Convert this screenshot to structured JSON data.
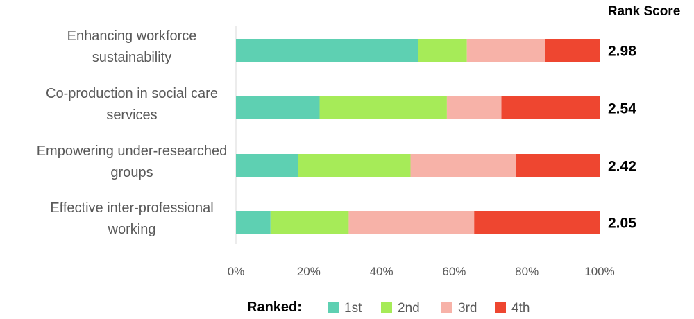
{
  "chart_data": {
    "type": "bar",
    "orientation": "horizontal",
    "stacked": true,
    "categories": [
      [
        "Enhancing workforce",
        "sustainability"
      ],
      [
        "Co-production in social care",
        "services"
      ],
      [
        "Empowering under-researched",
        "groups"
      ],
      [
        "Effective inter-professional",
        "working"
      ]
    ],
    "series": [
      {
        "name": "1st",
        "color": "#5ED0B2",
        "values": [
          50,
          23,
          17,
          9.5
        ]
      },
      {
        "name": "2nd",
        "color": "#A6EB58",
        "values": [
          13.5,
          35,
          31,
          21.5
        ]
      },
      {
        "name": "3rd",
        "color": "#F7B2A8",
        "values": [
          21.5,
          15,
          29,
          34.5
        ]
      },
      {
        "name": "4th",
        "color": "#EE4630",
        "values": [
          15,
          27,
          23,
          34.5
        ]
      }
    ],
    "rank_score_header": "Rank Score",
    "rank_scores": [
      "2.98",
      "2.54",
      "2.42",
      "2.05"
    ],
    "x_ticks": [
      "0%",
      "20%",
      "40%",
      "60%",
      "80%",
      "100%"
    ],
    "xlim": [
      0,
      100
    ],
    "legend_title": "Ranked:",
    "legend_position": "bottom",
    "grid": false,
    "title": "",
    "xlabel": "",
    "ylabel": ""
  }
}
